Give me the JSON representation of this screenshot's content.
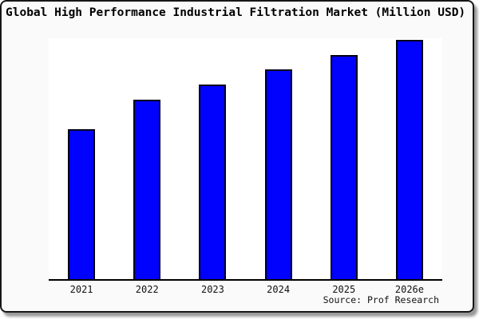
{
  "title": "Global High Performance Industrial Filtration Market (Million USD)",
  "source": "Source: Prof Research",
  "colors": {
    "bar_fill": "#0101fe",
    "bar_border": "#000018",
    "axis": "#000000",
    "plot_background": "#ffffff",
    "frame_background": "#fafafa",
    "frame_border": "#161616"
  },
  "chart_data": {
    "type": "bar",
    "title": "Global High Performance Industrial Filtration Market (Million USD)",
    "categories": [
      "2021",
      "2022",
      "2023",
      "2024",
      "2025",
      "2026e"
    ],
    "values": [
      62.7,
      75.0,
      81.3,
      87.7,
      93.7,
      100.0
    ],
    "value_note": "No y-axis tick labels or gridlines are shown in the chart; values are relative bar heights estimated from pixels, normalized so 2026e = 100.",
    "xlabel": "",
    "ylabel": "",
    "ylim": [
      0,
      100
    ],
    "grid": false,
    "y_axis_visible": false,
    "legend": null,
    "source_note": "Source: Prof Research"
  }
}
